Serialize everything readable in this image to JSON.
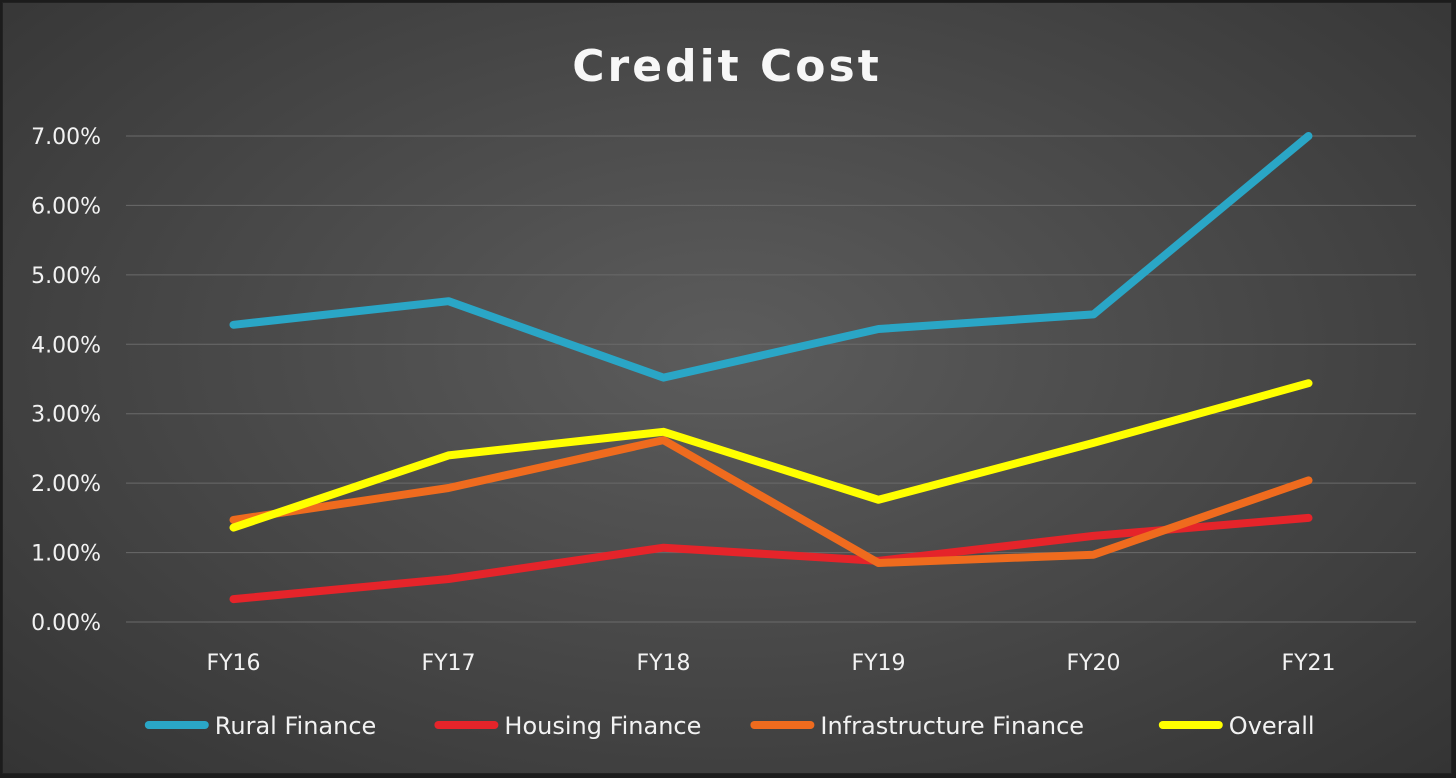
{
  "chart_data": {
    "type": "line",
    "title": "Credit Cost",
    "categories": [
      "FY16",
      "FY17",
      "FY18",
      "FY19",
      "FY20",
      "FY21"
    ],
    "ylim": [
      0,
      7
    ],
    "yticks": [
      "0.00%",
      "1.00%",
      "2.00%",
      "3.00%",
      "4.00%",
      "5.00%",
      "6.00%",
      "7.00%"
    ],
    "grid": true,
    "legend": "bottom",
    "series": [
      {
        "name": "Rural Finance",
        "color": "#2aa6c6",
        "values": [
          4.28,
          4.62,
          3.52,
          4.22,
          4.43,
          7.0
        ]
      },
      {
        "name": "Housing Finance",
        "color": "#e5242a",
        "values": [
          0.33,
          0.62,
          1.07,
          0.88,
          1.24,
          1.5
        ]
      },
      {
        "name": "Infrastructure Finance",
        "color": "#ef6b1e",
        "values": [
          1.47,
          1.93,
          2.62,
          0.85,
          0.97,
          2.04
        ]
      },
      {
        "name": "Overall",
        "color": "#ffff00",
        "values": [
          1.36,
          2.4,
          2.74,
          1.76,
          2.58,
          3.44
        ]
      }
    ]
  }
}
